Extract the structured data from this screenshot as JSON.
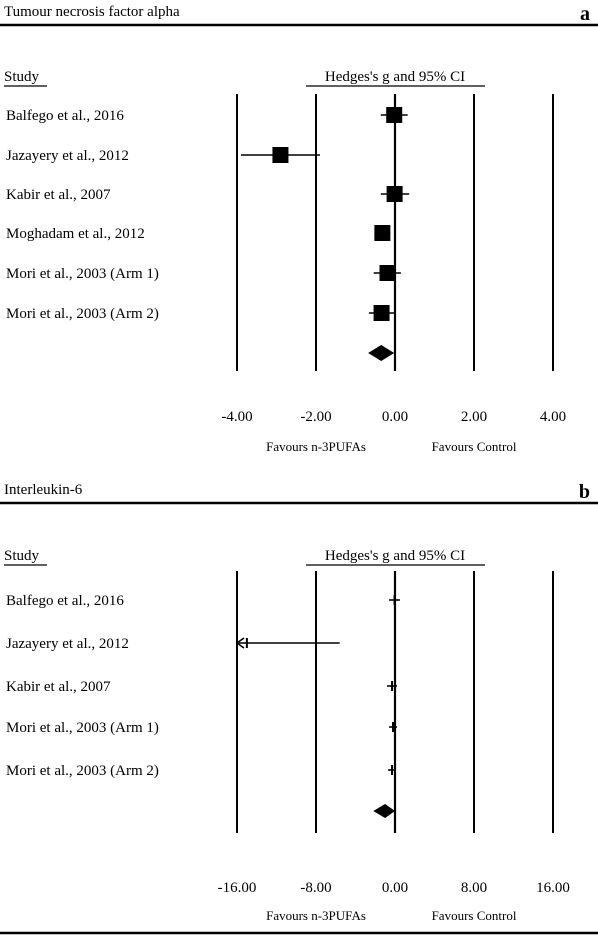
{
  "chart_data": [
    {
      "type": "forest",
      "panel_letter": "a",
      "title": "Tumour necrosis factor alpha",
      "study_header": "Study",
      "effect_header": "Hedges's g and 95% CI",
      "xlim": [
        -4,
        4
      ],
      "ticks": [
        "-4.00",
        "-2.00",
        "0.00",
        "2.00",
        "4.00"
      ],
      "tick_values": [
        -4,
        -2,
        0,
        2,
        4
      ],
      "favours_left": "Favours n-3PUFAs",
      "favours_right": "Favours Control",
      "studies": [
        {
          "name": "Balfego et al., 2016",
          "g": -0.02,
          "lower": -0.36,
          "upper": 0.32
        },
        {
          "name": "Jazayery et al., 2012",
          "g": -2.9,
          "lower": -3.9,
          "upper": -1.9
        },
        {
          "name": "Kabir et al., 2007",
          "g": -0.01,
          "lower": -0.36,
          "upper": 0.36
        },
        {
          "name": "Moghadam et al., 2012",
          "g": -0.32,
          "lower": -0.5,
          "upper": -0.12
        },
        {
          "name": "Mori et al., 2003 (Arm 1)",
          "g": -0.19,
          "lower": -0.54,
          "upper": 0.15
        },
        {
          "name": "Mori et al., 2003 (Arm 2)",
          "g": -0.34,
          "lower": -0.66,
          "upper": 0.02
        }
      ],
      "summary": {
        "g": -0.35,
        "lower": -0.68,
        "upper": -0.02
      }
    },
    {
      "type": "forest",
      "panel_letter": "b",
      "title": "Interleukin-6",
      "study_header": "Study",
      "effect_header": "Hedges's g and 95% CI",
      "xlim": [
        -16,
        16
      ],
      "ticks": [
        "-16.00",
        "-8.00",
        "0.00",
        "8.00",
        "16.00"
      ],
      "tick_values": [
        -16,
        -8,
        0,
        8,
        16
      ],
      "favours_left": "Favours n-3PUFAs",
      "favours_right": "Favours Control",
      "studies": [
        {
          "name": "Balfego et al., 2016",
          "g": -0.05,
          "lower": -0.6,
          "upper": 0.5
        },
        {
          "name": "Jazayery et al., 2012",
          "g": -15.0,
          "lower": -16,
          "upper": -5.6,
          "truncated_lower": true
        },
        {
          "name": "Kabir et al., 2007",
          "g": -0.3,
          "lower": -0.8,
          "upper": 0.2
        },
        {
          "name": "Mori et al., 2003 (Arm 1)",
          "g": -0.2,
          "lower": -0.6,
          "upper": 0.2
        },
        {
          "name": "Mori et al., 2003 (Arm 2)",
          "g": -0.3,
          "lower": -0.7,
          "upper": 0.1
        }
      ],
      "summary": {
        "g": -1.0,
        "lower": -2.2,
        "upper": 0.0
      }
    }
  ]
}
